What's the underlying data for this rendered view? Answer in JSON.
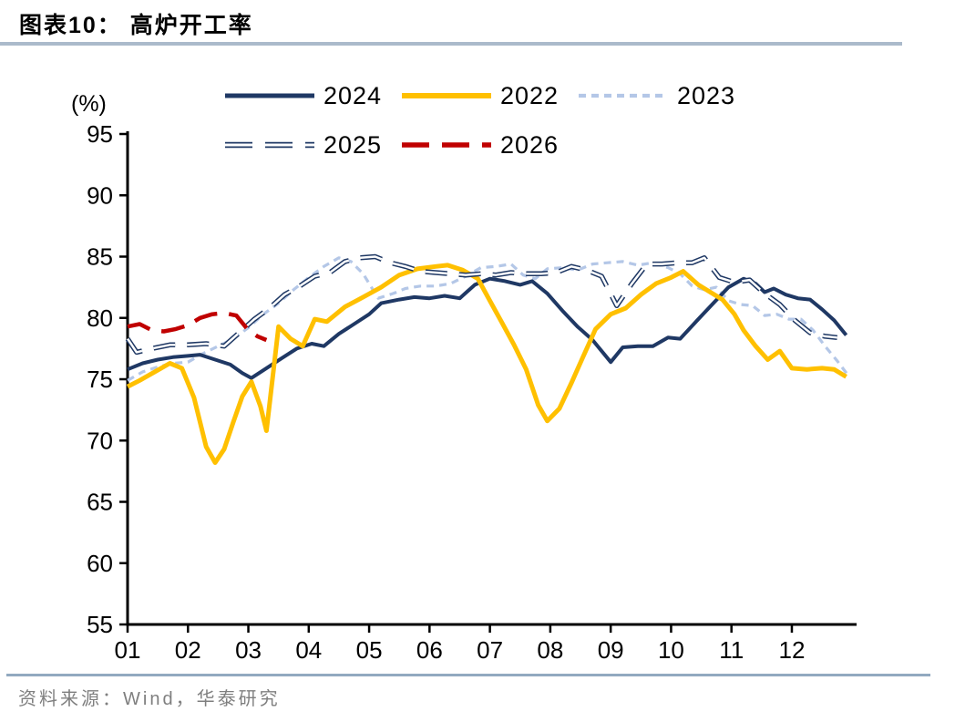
{
  "title": "图表10：  高炉开工率",
  "unit_label": "(%)",
  "source_text": "资料来源：Wind，华泰研究",
  "colors": {
    "navy": "#1F3864",
    "gold": "#FFC000",
    "light_blue": "#B4C7E7",
    "red": "#C00000",
    "axis": "#000000",
    "header_rule": "#ABBACB",
    "footer_rule": "#92A9C0",
    "source_text": "#7F7F7F"
  },
  "chart_data": {
    "type": "line",
    "title": "高炉开工率",
    "ylabel": "(%)",
    "ylim": [
      55,
      95
    ],
    "xlim": [
      1,
      13.1
    ],
    "grid": false,
    "legend_position": "top",
    "yticks": [
      "55",
      "60",
      "65",
      "70",
      "75",
      "80",
      "85",
      "90",
      "95"
    ],
    "ytick_values": [
      55,
      60,
      65,
      70,
      75,
      80,
      85,
      90,
      95
    ],
    "xticks": [
      "01",
      "02",
      "03",
      "04",
      "05",
      "06",
      "07",
      "08",
      "09",
      "10",
      "11",
      "12"
    ],
    "xtick_values": [
      1,
      2,
      3,
      4,
      5,
      6,
      7,
      8,
      9,
      10,
      11,
      12
    ],
    "legend_rows": [
      [
        "2024",
        "2022",
        "2023"
      ],
      [
        "2025",
        "2026"
      ]
    ],
    "series": [
      {
        "name": "2023",
        "color": "#B4C7E7",
        "width": 3.2,
        "dash": "8 6",
        "hollow": false,
        "points": [
          [
            1.0,
            74.9
          ],
          [
            1.25,
            75.6
          ],
          [
            1.5,
            76.0
          ],
          [
            1.75,
            76.3
          ],
          [
            2.0,
            76.4
          ],
          [
            2.25,
            77.1
          ],
          [
            2.5,
            77.7
          ],
          [
            2.75,
            78.3
          ],
          [
            3.0,
            79.2
          ],
          [
            3.25,
            80.3
          ],
          [
            3.5,
            81.2
          ],
          [
            3.75,
            82.3
          ],
          [
            4.0,
            83.3
          ],
          [
            4.25,
            84.2
          ],
          [
            4.5,
            84.9
          ],
          [
            4.7,
            84.6
          ],
          [
            4.9,
            83.6
          ],
          [
            5.15,
            81.6
          ],
          [
            5.4,
            82.0
          ],
          [
            5.6,
            82.4
          ],
          [
            5.85,
            82.6
          ],
          [
            6.1,
            82.6
          ],
          [
            6.35,
            82.8
          ],
          [
            6.6,
            83.4
          ],
          [
            6.85,
            84.1
          ],
          [
            7.1,
            84.2
          ],
          [
            7.35,
            84.4
          ],
          [
            7.55,
            83.5
          ],
          [
            7.75,
            83.2
          ],
          [
            7.95,
            84.0
          ],
          [
            8.2,
            84.1
          ],
          [
            8.45,
            83.9
          ],
          [
            8.7,
            84.4
          ],
          [
            8.95,
            84.5
          ],
          [
            9.2,
            84.6
          ],
          [
            9.45,
            84.3
          ],
          [
            9.7,
            84.5
          ],
          [
            9.95,
            84.1
          ],
          [
            10.15,
            83.6
          ],
          [
            10.35,
            82.6
          ],
          [
            10.55,
            82.3
          ],
          [
            10.75,
            82.5
          ],
          [
            10.95,
            81.4
          ],
          [
            11.15,
            81.1
          ],
          [
            11.35,
            81.0
          ],
          [
            11.55,
            80.2
          ],
          [
            11.75,
            80.3
          ],
          [
            11.95,
            79.9
          ],
          [
            12.15,
            79.9
          ],
          [
            12.35,
            79.0
          ],
          [
            12.55,
            77.7
          ],
          [
            12.75,
            76.5
          ],
          [
            12.92,
            75.4
          ]
        ]
      },
      {
        "name": "2024",
        "color": "#1F3864",
        "width": 4,
        "dash": "",
        "hollow": false,
        "points": [
          [
            1.0,
            75.8
          ],
          [
            1.25,
            76.3
          ],
          [
            1.5,
            76.6
          ],
          [
            1.75,
            76.8
          ],
          [
            2.0,
            76.9
          ],
          [
            2.2,
            77.0
          ],
          [
            2.45,
            76.6
          ],
          [
            2.7,
            76.2
          ],
          [
            2.9,
            75.5
          ],
          [
            3.05,
            75.1
          ],
          [
            3.3,
            75.9
          ],
          [
            3.55,
            76.7
          ],
          [
            3.8,
            77.5
          ],
          [
            4.05,
            77.9
          ],
          [
            4.25,
            77.7
          ],
          [
            4.5,
            78.7
          ],
          [
            4.75,
            79.5
          ],
          [
            5.0,
            80.3
          ],
          [
            5.2,
            81.2
          ],
          [
            5.5,
            81.5
          ],
          [
            5.75,
            81.7
          ],
          [
            6.0,
            81.6
          ],
          [
            6.25,
            81.8
          ],
          [
            6.5,
            81.6
          ],
          [
            6.75,
            82.7
          ],
          [
            7.0,
            83.2
          ],
          [
            7.25,
            83.0
          ],
          [
            7.5,
            82.7
          ],
          [
            7.7,
            83.0
          ],
          [
            7.95,
            82.0
          ],
          [
            8.2,
            80.6
          ],
          [
            8.45,
            79.3
          ],
          [
            8.7,
            78.2
          ],
          [
            9.0,
            76.4
          ],
          [
            9.2,
            77.6
          ],
          [
            9.45,
            77.7
          ],
          [
            9.7,
            77.7
          ],
          [
            9.95,
            78.4
          ],
          [
            10.15,
            78.3
          ],
          [
            10.45,
            79.9
          ],
          [
            10.7,
            81.2
          ],
          [
            10.95,
            82.5
          ],
          [
            11.2,
            83.2
          ],
          [
            11.4,
            82.8
          ],
          [
            11.55,
            82.1
          ],
          [
            11.7,
            82.4
          ],
          [
            11.9,
            81.9
          ],
          [
            12.1,
            81.6
          ],
          [
            12.3,
            81.5
          ],
          [
            12.5,
            80.7
          ],
          [
            12.7,
            79.8
          ],
          [
            12.9,
            78.6
          ]
        ]
      },
      {
        "name": "2022",
        "color": "#FFC000",
        "width": 5,
        "dash": "",
        "hollow": false,
        "points": [
          [
            1.0,
            74.4
          ],
          [
            1.2,
            74.9
          ],
          [
            1.45,
            75.6
          ],
          [
            1.7,
            76.3
          ],
          [
            1.9,
            75.9
          ],
          [
            2.1,
            73.5
          ],
          [
            2.3,
            69.5
          ],
          [
            2.45,
            68.2
          ],
          [
            2.6,
            69.3
          ],
          [
            2.75,
            71.5
          ],
          [
            2.9,
            73.6
          ],
          [
            3.05,
            74.8
          ],
          [
            3.2,
            72.8
          ],
          [
            3.3,
            70.8
          ],
          [
            3.5,
            79.3
          ],
          [
            3.7,
            78.3
          ],
          [
            3.9,
            77.7
          ],
          [
            4.1,
            79.9
          ],
          [
            4.3,
            79.7
          ],
          [
            4.6,
            80.9
          ],
          [
            4.9,
            81.7
          ],
          [
            5.2,
            82.5
          ],
          [
            5.5,
            83.5
          ],
          [
            5.8,
            84.0
          ],
          [
            6.1,
            84.2
          ],
          [
            6.3,
            84.3
          ],
          [
            6.55,
            83.9
          ],
          [
            6.8,
            83.2
          ],
          [
            7.0,
            81.4
          ],
          [
            7.2,
            79.6
          ],
          [
            7.4,
            77.8
          ],
          [
            7.6,
            75.8
          ],
          [
            7.8,
            72.9
          ],
          [
            7.95,
            71.6
          ],
          [
            8.15,
            72.6
          ],
          [
            8.35,
            74.7
          ],
          [
            8.55,
            76.9
          ],
          [
            8.75,
            79.1
          ],
          [
            9.0,
            80.3
          ],
          [
            9.25,
            80.8
          ],
          [
            9.5,
            81.9
          ],
          [
            9.75,
            82.8
          ],
          [
            10.0,
            83.3
          ],
          [
            10.2,
            83.8
          ],
          [
            10.45,
            82.7
          ],
          [
            10.65,
            82.1
          ],
          [
            10.85,
            81.5
          ],
          [
            11.05,
            80.3
          ],
          [
            11.2,
            79.0
          ],
          [
            11.4,
            77.7
          ],
          [
            11.6,
            76.6
          ],
          [
            11.8,
            77.3
          ],
          [
            12.0,
            75.9
          ],
          [
            12.25,
            75.8
          ],
          [
            12.5,
            75.9
          ],
          [
            12.7,
            75.8
          ],
          [
            12.9,
            75.2
          ]
        ]
      },
      {
        "name": "2025",
        "color": "#1F3864",
        "width": 5.5,
        "dash": "24 13",
        "hollow": true,
        "points": [
          [
            1.0,
            78.3
          ],
          [
            1.15,
            77.2
          ],
          [
            1.4,
            77.5
          ],
          [
            1.7,
            77.8
          ],
          [
            2.0,
            77.8
          ],
          [
            2.3,
            77.9
          ],
          [
            2.6,
            77.7
          ],
          [
            2.85,
            78.8
          ],
          [
            3.1,
            79.9
          ],
          [
            3.35,
            80.8
          ],
          [
            3.6,
            81.9
          ],
          [
            3.85,
            82.6
          ],
          [
            4.1,
            83.4
          ],
          [
            4.35,
            83.7
          ],
          [
            4.6,
            84.6
          ],
          [
            4.85,
            84.9
          ],
          [
            5.1,
            85.0
          ],
          [
            5.35,
            84.5
          ],
          [
            5.6,
            84.2
          ],
          [
            5.85,
            83.8
          ],
          [
            6.1,
            83.7
          ],
          [
            6.35,
            83.6
          ],
          [
            6.6,
            83.5
          ],
          [
            6.85,
            83.6
          ],
          [
            7.1,
            83.5
          ],
          [
            7.35,
            83.7
          ],
          [
            7.6,
            83.6
          ],
          [
            7.85,
            83.6
          ],
          [
            8.1,
            83.7
          ],
          [
            8.35,
            84.2
          ],
          [
            8.6,
            83.9
          ],
          [
            8.85,
            83.4
          ],
          [
            9.1,
            81.0
          ],
          [
            9.35,
            82.8
          ],
          [
            9.6,
            84.4
          ],
          [
            9.85,
            84.4
          ],
          [
            10.1,
            84.5
          ],
          [
            10.35,
            84.5
          ],
          [
            10.55,
            84.9
          ],
          [
            10.8,
            83.3
          ],
          [
            11.05,
            82.9
          ],
          [
            11.3,
            83.1
          ],
          [
            11.55,
            82.0
          ],
          [
            11.8,
            81.1
          ],
          [
            12.05,
            79.8
          ],
          [
            12.3,
            78.8
          ],
          [
            12.55,
            78.5
          ],
          [
            12.75,
            78.4
          ]
        ]
      },
      {
        "name": "2026",
        "color": "#C00000",
        "width": 4.5,
        "dash": "26 13",
        "hollow": false,
        "points": [
          [
            1.0,
            79.3
          ],
          [
            1.2,
            79.5
          ],
          [
            1.4,
            79.0
          ],
          [
            1.6,
            78.9
          ],
          [
            1.8,
            79.1
          ],
          [
            2.0,
            79.4
          ],
          [
            2.2,
            80.0
          ],
          [
            2.4,
            80.3
          ],
          [
            2.6,
            80.4
          ],
          [
            2.8,
            80.2
          ],
          [
            3.0,
            79.0
          ],
          [
            3.15,
            78.5
          ],
          [
            3.3,
            78.2
          ]
        ]
      }
    ]
  }
}
